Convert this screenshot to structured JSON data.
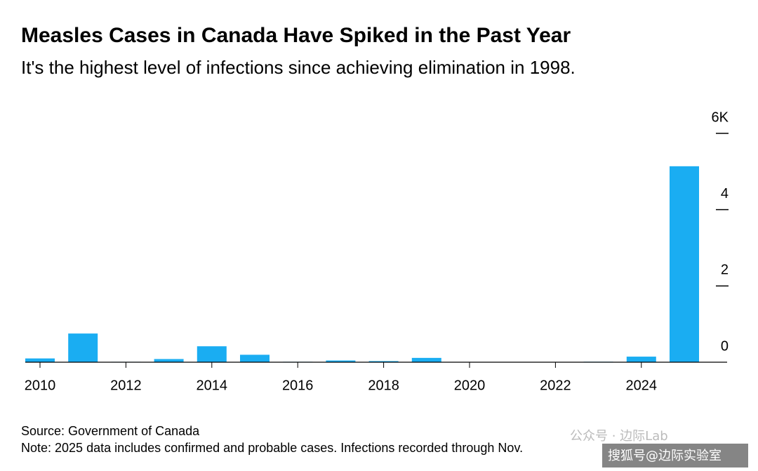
{
  "chart_data": {
    "type": "bar",
    "title": "Measles Cases in Canada Have Spiked in the Past Year",
    "subtitle": "It's the highest level of infections since achieving elimination in 1998.",
    "categories": [
      "2010",
      null,
      "2012",
      null,
      "2014",
      null,
      "2016",
      null,
      "2018",
      null,
      "2020",
      null,
      "2022",
      null,
      "2024",
      null
    ],
    "values": [
      0.099,
      0.752,
      0.01,
      0.083,
      0.418,
      0.195,
      0.011,
      0.045,
      0.029,
      0.113,
      0.001,
      0,
      0.003,
      0.012,
      0.146,
      5.138
    ],
    "color": "#1aadf2",
    "ylim": [
      0,
      6
    ],
    "yticks": [
      0,
      2,
      4,
      {
        "value": 6,
        "label": "6K"
      }
    ],
    "source": "Source: Government of Canada",
    "note": "Note: 2025 data includes confirmed and probable cases. Infections recorded through Nov.",
    "watermarks": [
      "公众号 · 边际Lab",
      "搜狐号@边际实验室"
    ]
  }
}
